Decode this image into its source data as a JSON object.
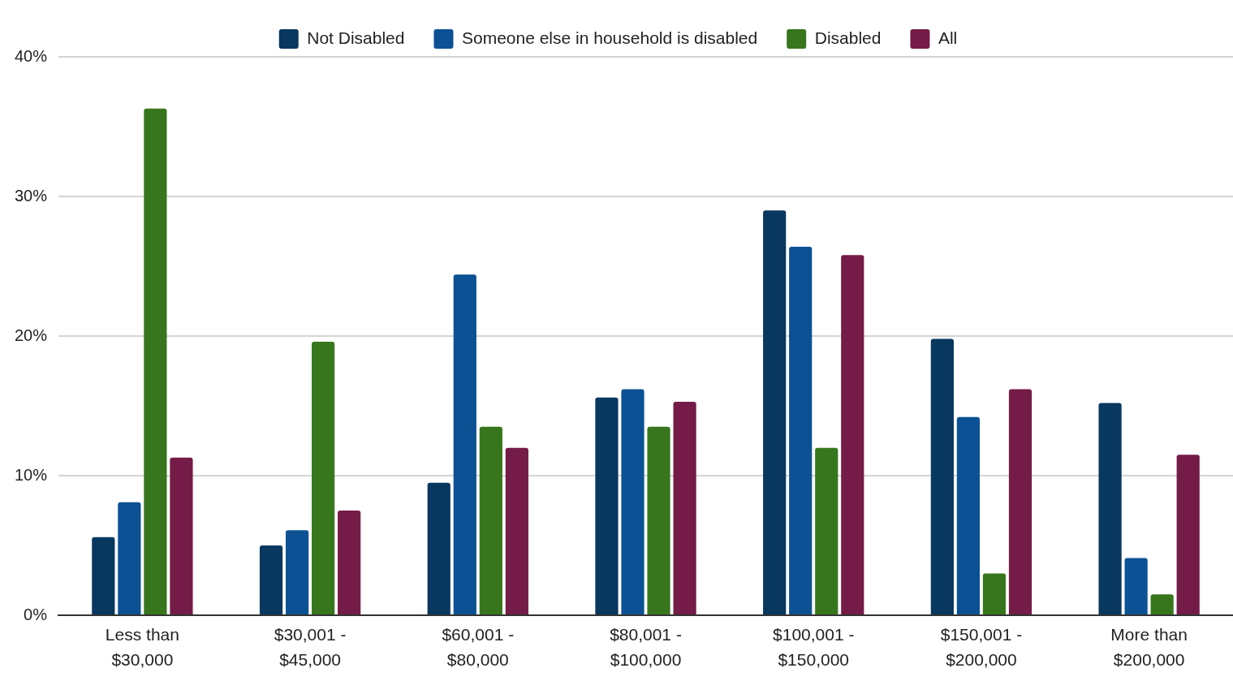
{
  "chart_data": {
    "type": "bar",
    "categories": [
      "Less than $30,000",
      "$30,001 - $45,000",
      "$60,001 - $80,000",
      "$80,001 - $100,000",
      "$100,001 - $150,000",
      "$150,001 - $200,000",
      "More than $200,000"
    ],
    "series": [
      {
        "name": "Not Disabled",
        "color": "#08375f",
        "values": [
          5.6,
          5.0,
          9.5,
          15.6,
          29.0,
          19.8,
          15.2
        ]
      },
      {
        "name": "Someone else in household is disabled",
        "color": "#0c5194",
        "values": [
          8.1,
          6.1,
          24.4,
          16.2,
          26.4,
          14.2,
          4.1
        ]
      },
      {
        "name": "Disabled",
        "color": "#38761d",
        "values": [
          36.3,
          19.6,
          13.5,
          13.5,
          12.0,
          3.0,
          1.5
        ]
      },
      {
        "name": "All",
        "color": "#741b47",
        "values": [
          11.3,
          7.5,
          12.0,
          15.3,
          25.8,
          16.2,
          11.5
        ]
      }
    ],
    "ylim": [
      0,
      40
    ],
    "yticks": [
      {
        "value": 0,
        "label": "0%"
      },
      {
        "value": 10,
        "label": "10%"
      },
      {
        "value": 20,
        "label": "20%"
      },
      {
        "value": 30,
        "label": "30%"
      },
      {
        "value": 40,
        "label": "40%"
      }
    ],
    "grid": "y",
    "legend": "top"
  }
}
